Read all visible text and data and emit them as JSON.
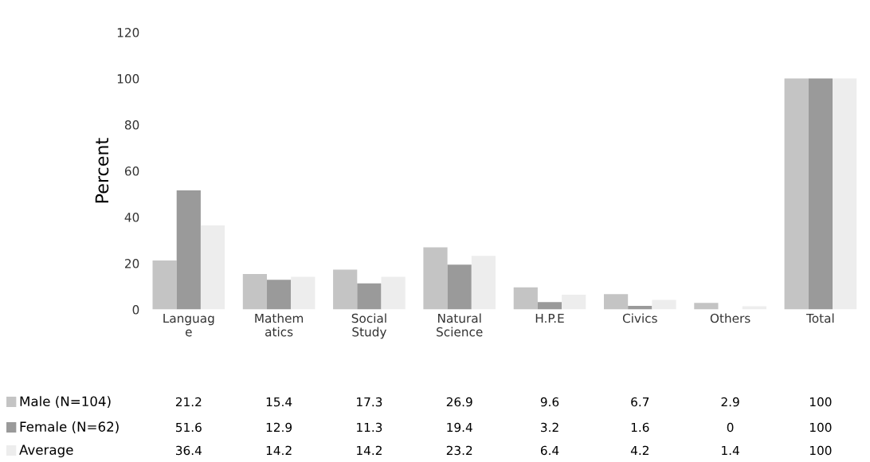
{
  "chart_data": {
    "type": "bar",
    "ylabel": "Percent",
    "categories": [
      "Languag\ne",
      "Mathem\natics",
      "Social\nStudy",
      "Natural\nScience",
      "H.P.E",
      "Civics",
      "Others",
      "Total"
    ],
    "series": [
      {
        "name": "Male (N=104)",
        "color": "#c4c4c4",
        "values": [
          21.2,
          15.4,
          17.3,
          26.9,
          9.6,
          6.7,
          2.9,
          100
        ]
      },
      {
        "name": "Female (N=62)",
        "color": "#9a9a9a",
        "values": [
          51.6,
          12.9,
          11.3,
          19.4,
          3.2,
          1.6,
          0,
          100
        ]
      },
      {
        "name": "Average",
        "color": "#ededed",
        "values": [
          36.4,
          14.2,
          14.2,
          23.2,
          6.4,
          4.2,
          1.4,
          100
        ]
      }
    ],
    "ylim": [
      0,
      120
    ],
    "yticks": [
      0,
      20,
      40,
      60,
      80,
      100,
      120
    ],
    "data_labels": true,
    "legend": "bottom",
    "grid": false
  }
}
